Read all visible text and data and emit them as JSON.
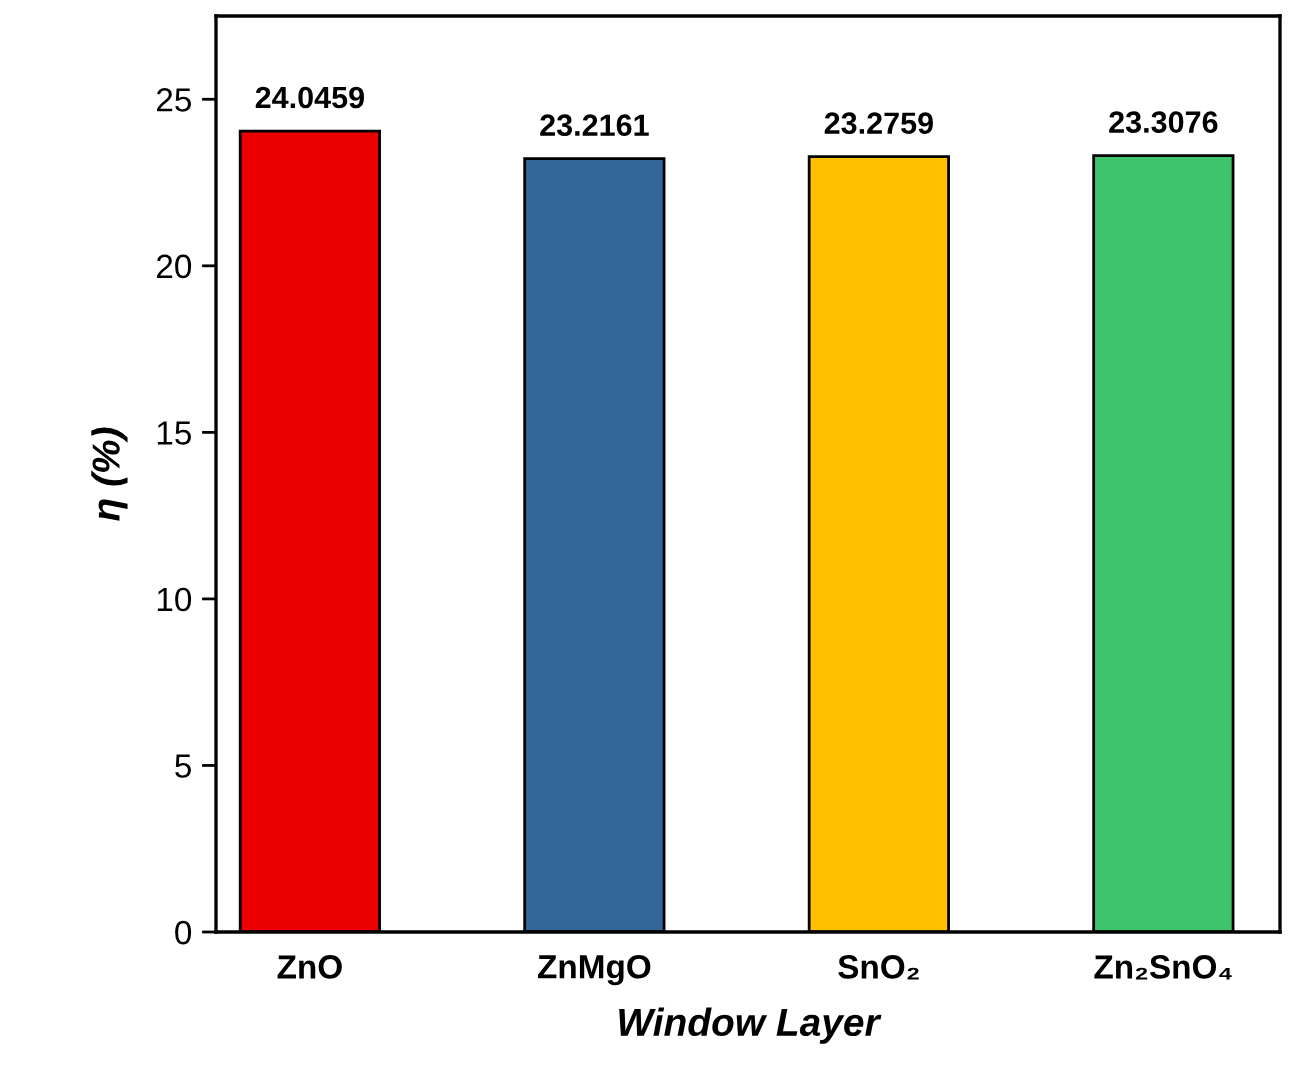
{
  "chart_data": {
    "type": "bar",
    "xlabel": "Window Layer",
    "ylabel": "η (%)",
    "categories": [
      "ZnO",
      "ZnMgO",
      "SnO₂",
      "Zn₂SnO₄"
    ],
    "values": [
      24.0459,
      23.2161,
      23.2759,
      23.3076
    ],
    "colors": [
      "#ee0000",
      "#336699",
      "#ffc000",
      "#3ec46d"
    ],
    "ylim": [
      0,
      27.5
    ],
    "yticks": [
      0,
      5,
      10,
      15,
      20,
      25
    ],
    "data_labels": true,
    "grid": false,
    "legend": false
  }
}
